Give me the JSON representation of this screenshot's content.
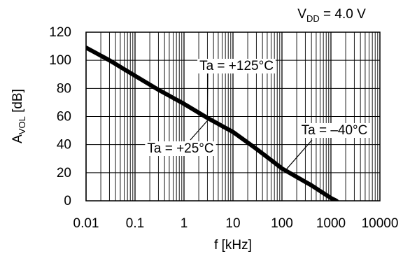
{
  "chart_data": {
    "type": "line",
    "title": "",
    "condition": {
      "prefix": "V",
      "subscript": "DD",
      "value": " = 4.0 V"
    },
    "xlabel": "f [kHz]",
    "ylabel": {
      "prefix": "A",
      "subscript": "VOL",
      "suffix": " [dB]"
    },
    "x_scale": "log",
    "xlim": [
      0.01,
      10000
    ],
    "ylim": [
      0,
      120
    ],
    "x_ticks": [
      0.01,
      0.1,
      1,
      10,
      100,
      1000,
      10000
    ],
    "x_tick_labels": [
      "0.01",
      "0.1",
      "1",
      "10",
      "100",
      "1000",
      "10000"
    ],
    "y_ticks": [
      0,
      20,
      40,
      60,
      80,
      100,
      120
    ],
    "y_tick_labels": [
      "0",
      "20",
      "40",
      "60",
      "80",
      "100",
      "120"
    ],
    "grid": true,
    "series": [
      {
        "x": [
          0.01,
          0.03,
          0.1,
          0.3,
          1,
          3,
          10,
          30,
          60,
          100,
          200,
          400,
          1000,
          1300
        ],
        "y": [
          109,
          100,
          89,
          79,
          69,
          59,
          49,
          37,
          29,
          23,
          17,
          11,
          2,
          0
        ]
      }
    ],
    "annotations": [
      {
        "text": "Ta = +125°C",
        "target": {
          "x": 3,
          "y": 60
        }
      },
      {
        "text": "Ta = +25°C",
        "target": {
          "x": 3,
          "y": 57
        }
      },
      {
        "text": "Ta = –40°C",
        "target": {
          "x": 120,
          "y": 22
        }
      }
    ]
  }
}
